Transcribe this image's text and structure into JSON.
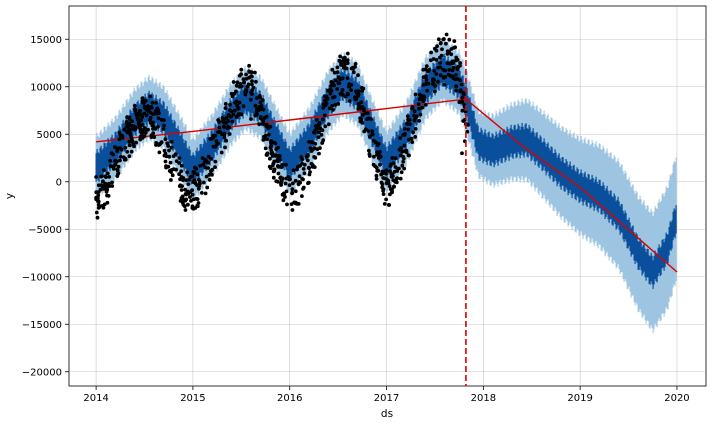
{
  "chart_data": {
    "type": "line",
    "title": "",
    "xlabel": "ds",
    "ylabel": "y",
    "xlim": [
      2013.72,
      2020.3
    ],
    "ylim": [
      -21500,
      18500
    ],
    "grid": true,
    "x_ticks": [
      {
        "value": 2014,
        "label": "2014"
      },
      {
        "value": 2015,
        "label": "2015"
      },
      {
        "value": 2016,
        "label": "2016"
      },
      {
        "value": 2017,
        "label": "2017"
      },
      {
        "value": 2018,
        "label": "2018"
      },
      {
        "value": 2019,
        "label": "2019"
      },
      {
        "value": 2020,
        "label": "2020"
      }
    ],
    "y_ticks": [
      {
        "value": 15000,
        "label": "15000"
      },
      {
        "value": 10000,
        "label": "10000"
      },
      {
        "value": 5000,
        "label": "5000"
      },
      {
        "value": 0,
        "label": "0"
      },
      {
        "value": -5000,
        "label": "−5000"
      },
      {
        "value": -10000,
        "label": "−10000"
      },
      {
        "value": -15000,
        "label": "−15000"
      },
      {
        "value": -20000,
        "label": "−20000"
      }
    ],
    "forecast_start": 2014.0,
    "forecast_end": 2020.0,
    "forecast_amplitude": 3000,
    "uncertainty_halfwidth": 1700,
    "forecast_yhat": [
      [
        2014.0,
        1500
      ],
      [
        2014.2,
        3500
      ],
      [
        2014.4,
        6500
      ],
      [
        2014.55,
        7800
      ],
      [
        2014.7,
        6700
      ],
      [
        2014.85,
        4000
      ],
      [
        2015.0,
        1200
      ],
      [
        2015.2,
        3800
      ],
      [
        2015.4,
        7200
      ],
      [
        2015.55,
        8800
      ],
      [
        2015.7,
        7800
      ],
      [
        2015.85,
        4800
      ],
      [
        2016.0,
        1800
      ],
      [
        2016.2,
        4500
      ],
      [
        2016.4,
        8500
      ],
      [
        2016.55,
        10300
      ],
      [
        2016.7,
        9200
      ],
      [
        2016.85,
        5500
      ],
      [
        2017.0,
        2000
      ],
      [
        2017.2,
        5000
      ],
      [
        2017.4,
        9800
      ],
      [
        2017.58,
        11800
      ],
      [
        2017.75,
        10400
      ],
      [
        2017.82,
        8600
      ],
      [
        2017.95,
        4000
      ],
      [
        2018.1,
        3300
      ],
      [
        2018.3,
        4200
      ],
      [
        2018.45,
        4400
      ],
      [
        2018.6,
        3000
      ],
      [
        2018.8,
        1000
      ],
      [
        2019.0,
        -500
      ],
      [
        2019.2,
        -1500
      ],
      [
        2019.4,
        -3500
      ],
      [
        2019.6,
        -7500
      ],
      [
        2019.75,
        -9500
      ],
      [
        2019.9,
        -7000
      ],
      [
        2020.0,
        -3500
      ]
    ],
    "trend": [
      [
        2014.0,
        4200
      ],
      [
        2015.0,
        5300
      ],
      [
        2016.0,
        6500
      ],
      [
        2017.0,
        7700
      ],
      [
        2017.82,
        8700
      ],
      [
        2018.4,
        3800
      ],
      [
        2019.0,
        -600
      ],
      [
        2020.0,
        -9500
      ]
    ],
    "observed_sample": [
      [
        2014.0,
        500
      ],
      [
        2014.08,
        1200
      ],
      [
        2014.16,
        3000
      ],
      [
        2014.24,
        5200
      ],
      [
        2014.32,
        6800
      ],
      [
        2014.4,
        8000
      ],
      [
        2014.48,
        8800
      ],
      [
        2014.56,
        9000
      ],
      [
        2014.62,
        8300
      ],
      [
        2014.7,
        6500
      ],
      [
        2014.78,
        4200
      ],
      [
        2014.86,
        2500
      ],
      [
        2014.94,
        1000
      ],
      [
        2015.02,
        1500
      ],
      [
        2015.1,
        2500
      ],
      [
        2015.18,
        4500
      ],
      [
        2015.26,
        6500
      ],
      [
        2015.34,
        8200
      ],
      [
        2015.42,
        10500
      ],
      [
        2015.5,
        11800
      ],
      [
        2015.58,
        12200
      ],
      [
        2015.64,
        11500
      ],
      [
        2015.72,
        8600
      ],
      [
        2015.8,
        5800
      ],
      [
        2015.88,
        3600
      ],
      [
        2015.96,
        1800
      ],
      [
        2016.04,
        1200
      ],
      [
        2016.12,
        2600
      ],
      [
        2016.2,
        4200
      ],
      [
        2016.28,
        6500
      ],
      [
        2016.36,
        9000
      ],
      [
        2016.44,
        11800
      ],
      [
        2016.52,
        13200
      ],
      [
        2016.6,
        13500
      ],
      [
        2016.68,
        12400
      ],
      [
        2016.76,
        9800
      ],
      [
        2016.84,
        6600
      ],
      [
        2016.92,
        4000
      ],
      [
        2017.0,
        1200
      ],
      [
        2017.06,
        2500
      ],
      [
        2017.14,
        4600
      ],
      [
        2017.22,
        6900
      ],
      [
        2017.3,
        9200
      ],
      [
        2017.38,
        11800
      ],
      [
        2017.46,
        13600
      ],
      [
        2017.54,
        15000
      ],
      [
        2017.62,
        15500
      ],
      [
        2017.7,
        14800
      ],
      [
        2017.76,
        12500
      ],
      [
        2017.8,
        9200
      ],
      [
        2017.84,
        6000
      ],
      [
        2014.2,
        1800
      ],
      [
        2014.5,
        4800
      ],
      [
        2014.6,
        4700
      ],
      [
        2014.8,
        2700
      ],
      [
        2015.3,
        5000
      ],
      [
        2015.5,
        7100
      ],
      [
        2015.6,
        6600
      ],
      [
        2015.9,
        2300
      ],
      [
        2016.3,
        6000
      ],
      [
        2016.5,
        8200
      ],
      [
        2016.62,
        8500
      ],
      [
        2016.9,
        3100
      ],
      [
        2017.3,
        6700
      ],
      [
        2017.5,
        9500
      ],
      [
        2017.6,
        10200
      ],
      [
        2017.72,
        9600
      ],
      [
        2017.78,
        3000
      ]
    ],
    "observed_color": "#000000",
    "yhat_color": "#0a4f9b",
    "interval_color": "#9dc4e0",
    "trend_color": "#d90000",
    "changepoint_color": "#d90000"
  }
}
